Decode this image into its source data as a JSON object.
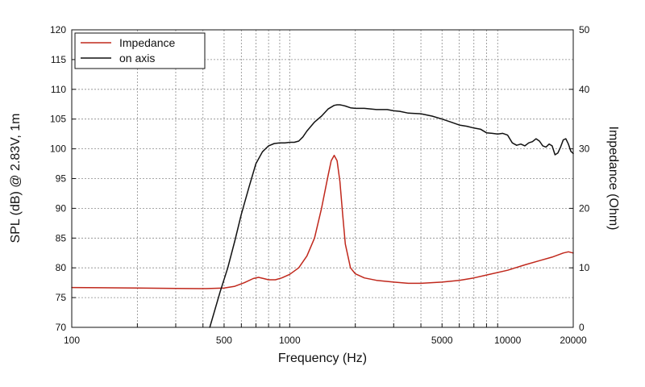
{
  "chart_data": {
    "type": "line",
    "xlabel": "Frequency (Hz)",
    "ylabel": "SPL (dB) @ 2.83V, 1m",
    "y2label": "Impedance (Ohm)",
    "x_scale": "log",
    "xlim": [
      100,
      20000
    ],
    "ylim": [
      70,
      120
    ],
    "y2lim": [
      0,
      50
    ],
    "grid": true,
    "legend_position": "top-left",
    "x_ticks": [
      {
        "value": 100,
        "label": "100"
      },
      {
        "value": 500,
        "label": "500"
      },
      {
        "value": 1000,
        "label": "1000"
      },
      {
        "value": 5000,
        "label": "5000"
      },
      {
        "value": 10000,
        "label": "10000"
      },
      {
        "value": 20000,
        "label": "20000"
      }
    ],
    "y_ticks": [
      "70",
      "75",
      "80",
      "85",
      "90",
      "95",
      "100",
      "105",
      "110",
      "115",
      "120"
    ],
    "y2_ticks": [
      "0",
      "10",
      "20",
      "30",
      "40",
      "50"
    ],
    "series": [
      {
        "name": "Impedance",
        "axis": "right",
        "color": "#c0281c",
        "x": [
          100,
          200,
          300,
          400,
          500,
          560,
          620,
          680,
          720,
          760,
          800,
          860,
          920,
          1000,
          1100,
          1200,
          1300,
          1400,
          1500,
          1550,
          1600,
          1650,
          1700,
          1750,
          1800,
          1900,
          2000,
          2200,
          2500,
          3000,
          3500,
          4000,
          5000,
          6000,
          7000,
          8000,
          10000,
          12000,
          14000,
          16000,
          18000,
          19000,
          20000
        ],
        "y": [
          6.7,
          6.6,
          6.55,
          6.5,
          6.6,
          6.9,
          7.5,
          8.2,
          8.4,
          8.2,
          8.0,
          8.0,
          8.3,
          8.9,
          10.0,
          12.0,
          15.0,
          20.0,
          25.5,
          28.0,
          28.9,
          28.0,
          24.5,
          19.0,
          14.0,
          10.0,
          9.0,
          8.3,
          7.9,
          7.6,
          7.4,
          7.4,
          7.6,
          7.9,
          8.3,
          8.8,
          9.6,
          10.5,
          11.2,
          11.8,
          12.5,
          12.7,
          12.5
        ]
      },
      {
        "name": "on axis",
        "axis": "left",
        "color": "#111111",
        "x": [
          430,
          480,
          520,
          560,
          600,
          650,
          700,
          750,
          800,
          850,
          900,
          950,
          1000,
          1050,
          1100,
          1150,
          1200,
          1300,
          1400,
          1500,
          1600,
          1650,
          1700,
          1750,
          1800,
          1900,
          2000,
          2200,
          2500,
          2800,
          3000,
          3200,
          3500,
          4000,
          4500,
          5000,
          5500,
          6000,
          6500,
          7000,
          7500,
          8000,
          8500,
          9000,
          9500,
          10000,
          10500,
          11000,
          11500,
          12000,
          12500,
          13000,
          13500,
          14000,
          14500,
          15000,
          15500,
          16000,
          16500,
          17000,
          17500,
          18000,
          18500,
          19000,
          19500,
          20000
        ],
        "y": [
          70,
          76,
          80,
          84.5,
          89,
          93.5,
          97.5,
          99.5,
          100.5,
          100.9,
          101,
          101,
          101.1,
          101.1,
          101.3,
          102.0,
          103.0,
          104.5,
          105.5,
          106.7,
          107.3,
          107.4,
          107.4,
          107.3,
          107.2,
          106.9,
          106.8,
          106.8,
          106.6,
          106.6,
          106.4,
          106.3,
          106.0,
          105.9,
          105.5,
          105.0,
          104.5,
          104.0,
          103.8,
          103.5,
          103.3,
          102.7,
          102.6,
          102.5,
          102.6,
          102.3,
          101.0,
          100.6,
          100.8,
          100.5,
          101.0,
          101.2,
          101.7,
          101.3,
          100.5,
          100.3,
          100.8,
          100.5,
          99.0,
          99.3,
          100.3,
          101.5,
          101.7,
          100.8,
          99.6,
          99.2
        ]
      }
    ]
  }
}
